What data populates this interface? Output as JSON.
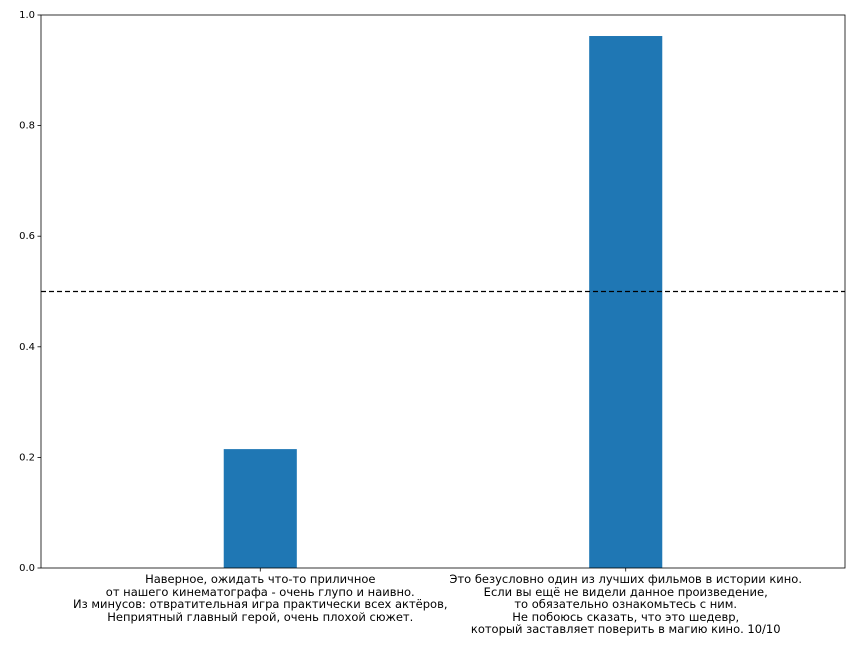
{
  "chart_data": {
    "type": "bar",
    "categories": [
      "Наверное, ожидать что-то приличное\nот нашего кинематографа - очень глупо и наивно.\nИз минусов: отвратительная игра практически всех актёров,\nНеприятный главный герой, очень плохой сюжет.",
      "Это безусловно один из лучших фильмов в истории кино.\nЕсли вы ещё не видели данное произведение,\nто обязательно ознакомьтесь с ним.\nНе побоюсь сказать, что это шедевр,\nкоторый заставляет поверить в магию кино. 10/10"
    ],
    "values": [
      0.215,
      0.962
    ],
    "color": "#1f77b4",
    "ylim": [
      0,
      1
    ],
    "yticks": [
      {
        "value": 0,
        "label": "0.0"
      },
      0.2,
      0.4,
      0.6,
      0.8,
      {
        "value": 1,
        "label": "1.0"
      }
    ],
    "reference_line": 0.5,
    "grid": false
  }
}
